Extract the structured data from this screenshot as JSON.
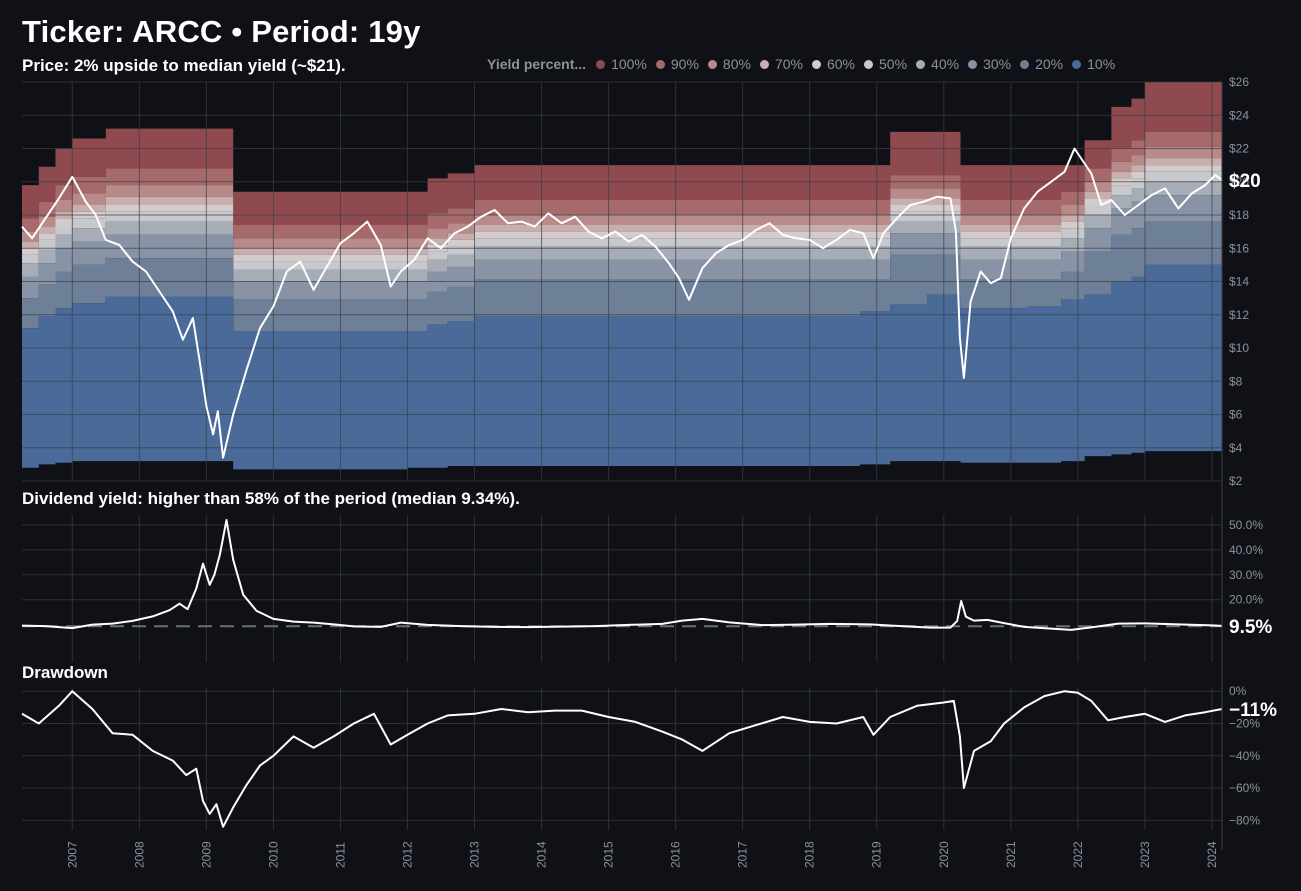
{
  "title": "Ticker: ARCC • Period: 19y",
  "chart_data": [
    {
      "id": "price",
      "type": "area",
      "subtitle": "Price: 2% upside to median yield (~$21).",
      "x_range": [
        2006.25,
        2024.15
      ],
      "ylim": [
        2,
        26
      ],
      "ytick_labels": [
        "$2",
        "$4",
        "$6",
        "$8",
        "$10",
        "$12",
        "$14",
        "$16",
        "$18",
        "$20",
        "$22",
        "$24",
        "$26"
      ],
      "legend": {
        "title": "Yield percent...",
        "entries": [
          {
            "label": "100%",
            "color": "#8f4a4f"
          },
          {
            "label": "90%",
            "color": "#a66a6a"
          },
          {
            "label": "80%",
            "color": "#b98a8a"
          },
          {
            "label": "70%",
            "color": "#c9aeae"
          },
          {
            "label": "60%",
            "color": "#d4cccc"
          },
          {
            "label": "50%",
            "color": "#c7c9cd"
          },
          {
            "label": "40%",
            "color": "#a7adb7"
          },
          {
            "label": "30%",
            "color": "#8894a6"
          },
          {
            "label": "20%",
            "color": "#6e7f98"
          },
          {
            "label": "10%",
            "color": "#4a6a9a"
          }
        ]
      },
      "band_steps": {
        "x": [
          2006.25,
          2006.5,
          2006.75,
          2007.0,
          2007.5,
          2008.0,
          2009.4,
          2010.0,
          2011.0,
          2011.5,
          2012.0,
          2012.3,
          2012.6,
          2013.0,
          2014.0,
          2015.0,
          2016.0,
          2017.0,
          2018.0,
          2018.75,
          2019.2,
          2019.75,
          2020.25,
          2020.75,
          2021.25,
          2021.75,
          2022.1,
          2022.5,
          2022.8,
          2023.0,
          2024.15
        ],
        "p100": [
          19.8,
          20.9,
          22.0,
          22.6,
          23.2,
          23.2,
          19.4,
          19.4,
          19.4,
          19.4,
          19.4,
          20.2,
          20.5,
          21.0,
          21.0,
          21.0,
          21.0,
          21.0,
          21.0,
          21.0,
          23.0,
          23.0,
          21.0,
          21.0,
          21.0,
          21.0,
          22.5,
          24.5,
          25.0,
          26.0,
          26.0
        ],
        "p90": [
          17.8,
          18.8,
          19.8,
          20.3,
          20.8,
          20.8,
          17.4,
          17.4,
          17.4,
          17.4,
          17.4,
          18.1,
          18.4,
          18.9,
          18.9,
          18.9,
          18.9,
          18.9,
          18.9,
          18.9,
          20.4,
          20.4,
          18.9,
          18.9,
          18.9,
          19.4,
          20.8,
          22.0,
          22.5,
          23.0,
          23.0
        ],
        "p80": [
          17.0,
          17.9,
          18.9,
          19.3,
          19.8,
          19.8,
          16.6,
          16.6,
          16.6,
          16.6,
          16.6,
          17.2,
          17.5,
          18.0,
          18.0,
          18.0,
          18.0,
          18.0,
          18.0,
          18.0,
          19.6,
          19.6,
          18.0,
          18.0,
          18.0,
          18.6,
          20.0,
          21.2,
          21.6,
          22.1,
          22.1
        ],
        "p70": [
          16.4,
          17.3,
          18.2,
          18.6,
          19.1,
          19.1,
          16.0,
          16.0,
          16.0,
          16.0,
          16.0,
          16.6,
          16.9,
          17.4,
          17.4,
          17.4,
          17.4,
          17.4,
          17.4,
          17.4,
          19.0,
          19.0,
          17.4,
          17.4,
          17.4,
          18.0,
          19.4,
          20.6,
          21.0,
          21.4,
          21.4
        ],
        "p60": [
          16.0,
          16.9,
          17.8,
          18.2,
          18.6,
          18.6,
          15.6,
          15.6,
          15.6,
          15.6,
          15.6,
          16.2,
          16.5,
          17.0,
          17.0,
          17.0,
          17.0,
          17.0,
          17.0,
          17.0,
          18.6,
          18.6,
          17.0,
          17.0,
          17.0,
          17.6,
          19.0,
          20.2,
          20.6,
          21.0,
          21.0
        ],
        "p50": [
          15.6,
          16.5,
          17.4,
          17.8,
          18.2,
          18.2,
          15.2,
          15.2,
          15.2,
          15.2,
          15.2,
          15.8,
          16.1,
          16.6,
          16.6,
          16.6,
          16.6,
          16.6,
          16.6,
          16.6,
          18.2,
          18.2,
          16.6,
          16.6,
          16.6,
          17.2,
          18.6,
          19.8,
          20.2,
          20.6,
          20.6
        ],
        "p40": [
          15.1,
          15.9,
          16.8,
          17.2,
          17.6,
          17.6,
          14.7,
          14.7,
          14.7,
          14.7,
          14.7,
          15.3,
          15.6,
          16.1,
          16.1,
          16.1,
          16.1,
          16.1,
          16.1,
          16.1,
          17.6,
          17.6,
          16.1,
          16.1,
          16.1,
          16.6,
          18.0,
          19.2,
          19.6,
          20.0,
          20.0
        ],
        "p30": [
          14.3,
          15.1,
          16.0,
          16.4,
          16.8,
          16.8,
          14.0,
          14.0,
          14.0,
          14.0,
          14.0,
          14.6,
          14.9,
          15.3,
          15.3,
          15.3,
          15.3,
          15.3,
          15.3,
          15.3,
          16.9,
          16.9,
          15.3,
          15.3,
          15.3,
          15.8,
          17.2,
          18.4,
          18.8,
          19.2,
          19.2
        ],
        "p20": [
          13.0,
          13.8,
          14.6,
          15.0,
          15.4,
          15.4,
          12.9,
          12.9,
          12.9,
          12.9,
          12.9,
          13.4,
          13.7,
          14.1,
          14.1,
          14.1,
          14.1,
          14.1,
          14.1,
          14.1,
          15.6,
          15.6,
          14.1,
          14.1,
          14.1,
          14.6,
          15.8,
          16.8,
          17.2,
          17.6,
          17.6
        ],
        "p10": [
          11.2,
          11.9,
          12.4,
          12.7,
          13.1,
          13.1,
          11.0,
          11.0,
          11.0,
          11.0,
          11.0,
          11.4,
          11.6,
          11.9,
          11.9,
          11.9,
          11.9,
          11.9,
          11.9,
          12.2,
          12.6,
          13.2,
          12.4,
          12.4,
          12.5,
          12.9,
          13.2,
          14.0,
          14.3,
          15.0,
          15.0
        ],
        "p0": [
          2.8,
          3.0,
          3.1,
          3.2,
          3.2,
          3.2,
          2.7,
          2.7,
          2.7,
          2.7,
          2.8,
          2.8,
          2.9,
          2.9,
          2.9,
          2.9,
          2.9,
          2.9,
          2.9,
          3.0,
          3.2,
          3.2,
          3.1,
          3.1,
          3.1,
          3.2,
          3.5,
          3.6,
          3.7,
          3.8,
          3.8
        ]
      },
      "price_series": {
        "x": [
          2006.25,
          2006.4,
          2006.6,
          2006.8,
          2007.0,
          2007.2,
          2007.35,
          2007.5,
          2007.7,
          2007.9,
          2008.1,
          2008.3,
          2008.5,
          2008.65,
          2008.8,
          2008.9,
          2009.0,
          2009.1,
          2009.17,
          2009.25,
          2009.4,
          2009.6,
          2009.8,
          2010.0,
          2010.2,
          2010.4,
          2010.6,
          2010.8,
          2011.0,
          2011.2,
          2011.4,
          2011.6,
          2011.75,
          2011.9,
          2012.1,
          2012.3,
          2012.5,
          2012.7,
          2012.9,
          2013.1,
          2013.3,
          2013.5,
          2013.7,
          2013.9,
          2014.1,
          2014.3,
          2014.5,
          2014.7,
          2014.9,
          2015.1,
          2015.3,
          2015.5,
          2015.7,
          2015.9,
          2016.05,
          2016.2,
          2016.4,
          2016.6,
          2016.8,
          2017.0,
          2017.2,
          2017.4,
          2017.6,
          2017.8,
          2018.0,
          2018.2,
          2018.4,
          2018.6,
          2018.8,
          2018.95,
          2019.1,
          2019.3,
          2019.5,
          2019.7,
          2019.9,
          2020.1,
          2020.18,
          2020.24,
          2020.3,
          2020.4,
          2020.55,
          2020.7,
          2020.85,
          2021.0,
          2021.2,
          2021.4,
          2021.6,
          2021.8,
          2021.95,
          2022.05,
          2022.2,
          2022.35,
          2022.5,
          2022.7,
          2022.9,
          2023.1,
          2023.3,
          2023.5,
          2023.7,
          2023.9,
          2024.05,
          2024.15
        ],
        "y": [
          17.3,
          16.6,
          17.8,
          19.0,
          20.3,
          18.8,
          18.0,
          16.5,
          16.2,
          15.2,
          14.6,
          13.4,
          12.2,
          10.5,
          11.8,
          9.2,
          6.5,
          4.8,
          6.2,
          3.4,
          6.0,
          8.7,
          11.2,
          12.5,
          14.6,
          15.2,
          13.5,
          14.9,
          16.3,
          16.9,
          17.6,
          16.2,
          13.7,
          14.6,
          15.3,
          16.6,
          16.0,
          16.9,
          17.3,
          17.9,
          18.3,
          17.5,
          17.6,
          17.3,
          18.1,
          17.5,
          17.9,
          17.0,
          16.6,
          17.0,
          16.4,
          16.8,
          16.1,
          15.1,
          14.2,
          12.9,
          14.8,
          15.7,
          16.2,
          16.5,
          17.1,
          17.5,
          16.8,
          16.6,
          16.5,
          16.0,
          16.5,
          17.1,
          16.9,
          15.4,
          16.9,
          17.8,
          18.6,
          18.8,
          19.1,
          19.0,
          17.0,
          10.6,
          8.2,
          12.8,
          14.6,
          13.9,
          14.2,
          16.6,
          18.4,
          19.4,
          20.0,
          20.6,
          22.0,
          21.4,
          20.5,
          18.6,
          18.9,
          18.0,
          18.6,
          19.2,
          19.6,
          18.4,
          19.3,
          19.8,
          20.4,
          20.1
        ],
        "last_label": "$20"
      }
    },
    {
      "id": "dividend-yield",
      "type": "line",
      "subtitle": "Dividend yield: higher than 58% of the period (median 9.34%).",
      "x_range": [
        2006.25,
        2024.15
      ],
      "ylim": [
        -5,
        54
      ],
      "median_value": 9.34,
      "ytick_labels": [
        "20.0%",
        "30.0%",
        "40.0%",
        "50.0%"
      ],
      "series": {
        "x": [
          2006.25,
          2006.6,
          2007.0,
          2007.3,
          2007.6,
          2007.9,
          2008.2,
          2008.45,
          2008.6,
          2008.72,
          2008.85,
          2008.95,
          2009.05,
          2009.12,
          2009.2,
          2009.3,
          2009.4,
          2009.55,
          2009.75,
          2010.0,
          2010.3,
          2010.6,
          2010.9,
          2011.2,
          2011.6,
          2011.9,
          2012.3,
          2012.8,
          2013.3,
          2013.8,
          2014.3,
          2014.8,
          2015.3,
          2015.8,
          2016.1,
          2016.4,
          2016.8,
          2017.3,
          2017.8,
          2018.3,
          2018.9,
          2019.3,
          2019.8,
          2020.1,
          2020.2,
          2020.26,
          2020.33,
          2020.45,
          2020.65,
          2020.9,
          2021.2,
          2021.6,
          2021.9,
          2022.2,
          2022.6,
          2023.0,
          2023.5,
          2024.0,
          2024.15
        ],
        "y": [
          9.6,
          9.4,
          8.6,
          10.0,
          10.4,
          11.5,
          13.3,
          15.8,
          18.4,
          16.2,
          24.5,
          34.5,
          26.0,
          30.0,
          38.0,
          52.0,
          36.0,
          22.0,
          15.5,
          12.3,
          11.2,
          10.8,
          10.1,
          9.3,
          9.1,
          10.8,
          9.9,
          9.4,
          9.1,
          9.0,
          9.2,
          9.4,
          9.9,
          10.3,
          11.6,
          12.3,
          10.9,
          9.8,
          10.0,
          10.3,
          10.1,
          9.5,
          8.8,
          8.8,
          11.5,
          19.5,
          13.2,
          11.6,
          11.9,
          10.6,
          9.1,
          8.4,
          7.9,
          8.9,
          10.4,
          10.5,
          10.1,
          9.7,
          9.5
        ],
        "last_label": "9.5%"
      }
    },
    {
      "id": "drawdown",
      "type": "line",
      "subtitle": "Drawdown",
      "x_range": [
        2006.25,
        2024.15
      ],
      "ylim": [
        -86,
        2
      ],
      "ytick_labels": [
        "0%",
        "−20%",
        "−40%",
        "−60%",
        "−80%"
      ],
      "series": {
        "x": [
          2006.25,
          2006.5,
          2006.8,
          2007.0,
          2007.3,
          2007.6,
          2007.9,
          2008.2,
          2008.5,
          2008.7,
          2008.85,
          2008.95,
          2009.05,
          2009.15,
          2009.25,
          2009.4,
          2009.6,
          2009.8,
          2010.0,
          2010.3,
          2010.6,
          2010.9,
          2011.2,
          2011.5,
          2011.75,
          2012.0,
          2012.3,
          2012.6,
          2013.0,
          2013.4,
          2013.8,
          2014.2,
          2014.6,
          2015.0,
          2015.4,
          2015.8,
          2016.1,
          2016.4,
          2016.8,
          2017.2,
          2017.6,
          2018.0,
          2018.4,
          2018.8,
          2018.95,
          2019.2,
          2019.6,
          2020.0,
          2020.15,
          2020.24,
          2020.3,
          2020.45,
          2020.7,
          2020.9,
          2021.2,
          2021.5,
          2021.8,
          2022.0,
          2022.2,
          2022.45,
          2022.7,
          2023.0,
          2023.3,
          2023.6,
          2023.9,
          2024.15
        ],
        "y": [
          -14,
          -20,
          -9,
          0,
          -11,
          -26,
          -27,
          -37,
          -43,
          -52,
          -48,
          -68,
          -76,
          -70,
          -84,
          -72,
          -58,
          -46,
          -40,
          -28,
          -35,
          -28,
          -20,
          -14,
          -33,
          -27,
          -20,
          -15,
          -14,
          -11,
          -13,
          -12,
          -12,
          -16,
          -19,
          -25,
          -30,
          -37,
          -26,
          -21,
          -16,
          -19,
          -20,
          -16,
          -27,
          -16,
          -9,
          -7,
          -6,
          -28,
          -60,
          -37,
          -31,
          -20,
          -10,
          -3,
          0,
          -1,
          -6,
          -18,
          -16,
          -14,
          -19,
          -15,
          -13,
          -11
        ],
        "last_label": "−11%"
      }
    }
  ],
  "x_axis": {
    "year_labels": [
      "2007",
      "2008",
      "2009",
      "2010",
      "2011",
      "2012",
      "2013",
      "2014",
      "2015",
      "2016",
      "2017",
      "2018",
      "2019",
      "2020",
      "2021",
      "2022",
      "2023",
      "2024"
    ],
    "year_values": [
      2007,
      2008,
      2009,
      2010,
      2011,
      2012,
      2013,
      2014,
      2015,
      2016,
      2017,
      2018,
      2019,
      2020,
      2021,
      2022,
      2023,
      2024
    ]
  },
  "colors": {
    "background": "#0f1117",
    "grid": "#3a3d45",
    "line": "#ffffff",
    "median_line": "#6b6f78"
  }
}
